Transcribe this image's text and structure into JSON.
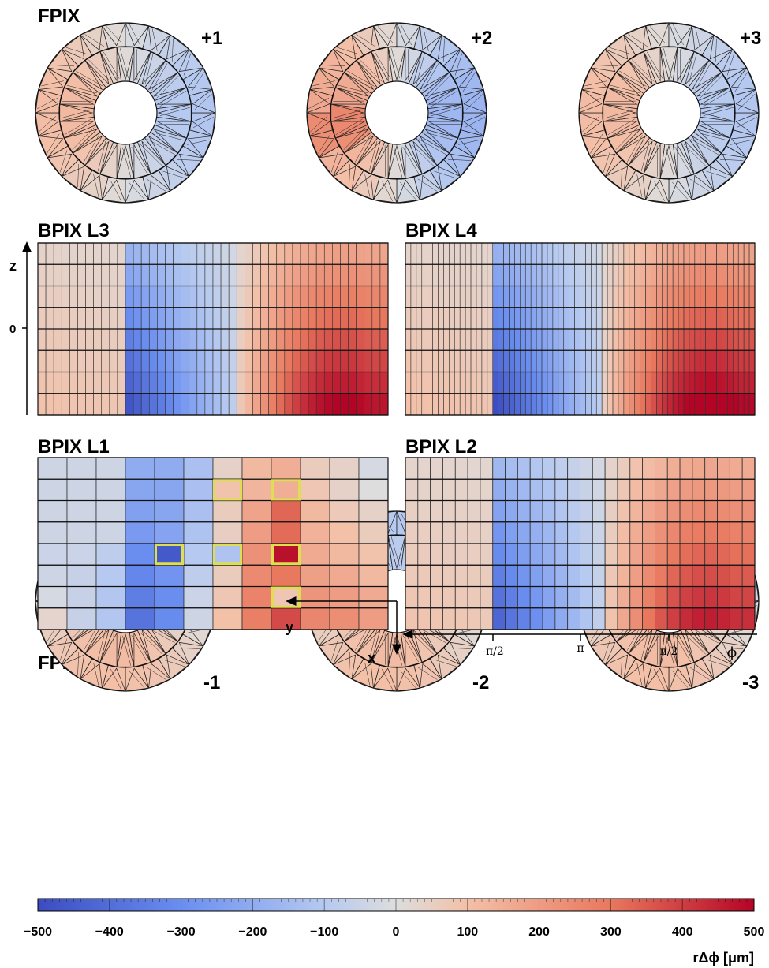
{
  "titles": {
    "fpix_top": "FPIX",
    "fpix_bottom": "FPIX",
    "bpix_l3": "BPIX L3",
    "bpix_l4": "BPIX L4",
    "bpix_l1": "BPIX L1",
    "bpix_l2": "BPIX L2"
  },
  "disks": {
    "top": [
      "+1",
      "+2",
      "+3"
    ],
    "bottom": [
      "-1",
      "-2",
      "-3"
    ]
  },
  "axes": {
    "z": "z",
    "zero": "0",
    "x": "x",
    "y": "y",
    "phi_ticks": [
      "-π/2",
      "π",
      "π/2"
    ],
    "phi": "ϕ"
  },
  "colorbar": {
    "ticks": [
      "−500",
      "−400",
      "−300",
      "−200",
      "−100",
      "0",
      "100",
      "200",
      "300",
      "400",
      "500"
    ],
    "label": "rΔϕ [μm]",
    "range": [
      -500,
      500
    ],
    "colors": {
      "low": "#3b4cc0",
      "mid": "#dddddd",
      "high": "#b40426",
      "highlight": "#dede50"
    }
  },
  "chart_data": {
    "type": "heatmap",
    "zlim": [
      -500,
      500
    ],
    "bpix_l1": {
      "rows": 8,
      "cols": 12,
      "values": [
        [
          -40,
          -40,
          -40,
          -200,
          -200,
          -130,
          40,
          120,
          150,
          60,
          40,
          -20
        ],
        [
          -40,
          -40,
          -40,
          -220,
          -220,
          -130,
          90,
          130,
          150,
          80,
          40,
          0
        ],
        [
          -40,
          -40,
          -40,
          -240,
          -220,
          -130,
          60,
          180,
          330,
          120,
          70,
          40
        ],
        [
          -40,
          -40,
          -40,
          -260,
          -230,
          -120,
          50,
          200,
          320,
          140,
          100,
          60
        ],
        [
          -50,
          -50,
          -80,
          -300,
          -460,
          -100,
          -120,
          230,
          480,
          160,
          120,
          90
        ],
        [
          -40,
          -60,
          -100,
          -320,
          -280,
          -80,
          60,
          250,
          300,
          190,
          160,
          120
        ],
        [
          -20,
          -60,
          -110,
          -350,
          -300,
          -50,
          80,
          270,
          80,
          220,
          200,
          160
        ],
        [
          30,
          -60,
          -110,
          -380,
          -310,
          -40,
          100,
          280,
          380,
          260,
          240,
          200
        ]
      ],
      "highlighted": [
        [
          1,
          6
        ],
        [
          1,
          8
        ],
        [
          4,
          4
        ],
        [
          4,
          6
        ],
        [
          4,
          8
        ],
        [
          6,
          8
        ]
      ]
    },
    "bpix_l2": {
      "rows": 8,
      "cols": 28
    },
    "bpix_l3": {
      "rows": 8,
      "cols": 44
    },
    "bpix_l4": {
      "rows": 8,
      "cols": 64
    }
  }
}
